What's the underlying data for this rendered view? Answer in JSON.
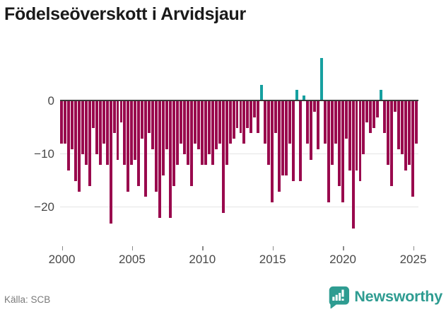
{
  "title": "Födelseöverskott i Arvidsjaur",
  "footer": {
    "source": "Källa: SCB",
    "brand": "Newsworthy"
  },
  "colors": {
    "negative_bar": "#99094d",
    "positive_bar": "#16a0a0",
    "brand_teal": "#2e9c91",
    "grid": "#e4e4e4",
    "zero_line": "#3a3a3a",
    "axis_text": "#484848",
    "source_text": "#7a7a7a",
    "title_text": "#1a1a1a"
  },
  "chart_data": {
    "type": "bar",
    "title": "Födelseöverskott i Arvidsjaur",
    "xlabel": "",
    "ylabel": "",
    "x_start": "2000 Q1",
    "x_freq": "quarterly",
    "values": [
      -8,
      -8,
      -13,
      -9,
      -15,
      -17,
      -10,
      -12,
      -16,
      -5,
      -10,
      -12,
      -8,
      -12,
      -23,
      -6,
      -11,
      -4,
      -12,
      -17,
      -12,
      -11,
      -16,
      -7,
      -18,
      -6,
      -9,
      -17,
      -22,
      -14,
      -9,
      -22,
      -16,
      -12,
      -8,
      -10,
      -12,
      -16,
      -8,
      -9,
      -12,
      -12,
      -10,
      -12,
      -9,
      -8,
      -21,
      -12,
      -8,
      -7,
      -5,
      -6,
      -8,
      -5,
      -6,
      -3,
      -6,
      3,
      -8,
      -12,
      -19,
      -6,
      -17,
      -14,
      -14,
      -8,
      -15,
      2,
      -15,
      1,
      -8,
      -11,
      -2,
      -9,
      8,
      -8,
      -19,
      -12,
      -8,
      -16,
      -19,
      -7,
      -13,
      -24,
      -13,
      -15,
      -10,
      -4,
      -6,
      -5,
      -3,
      2,
      -6,
      -12,
      -16,
      -2,
      -9,
      -10,
      -13,
      -12,
      -18,
      -8
    ],
    "x_ticks": [
      2000,
      2005,
      2010,
      2015,
      2020,
      2025
    ],
    "x_tick_labels": [
      "2000",
      "2005",
      "2010",
      "2015",
      "2020",
      "2025"
    ],
    "y_ticks": [
      0,
      -10,
      -20
    ],
    "y_tick_labels": [
      "0",
      "−10",
      "−20"
    ],
    "ylim": [
      -26,
      9
    ],
    "grid": true,
    "legend": false
  }
}
